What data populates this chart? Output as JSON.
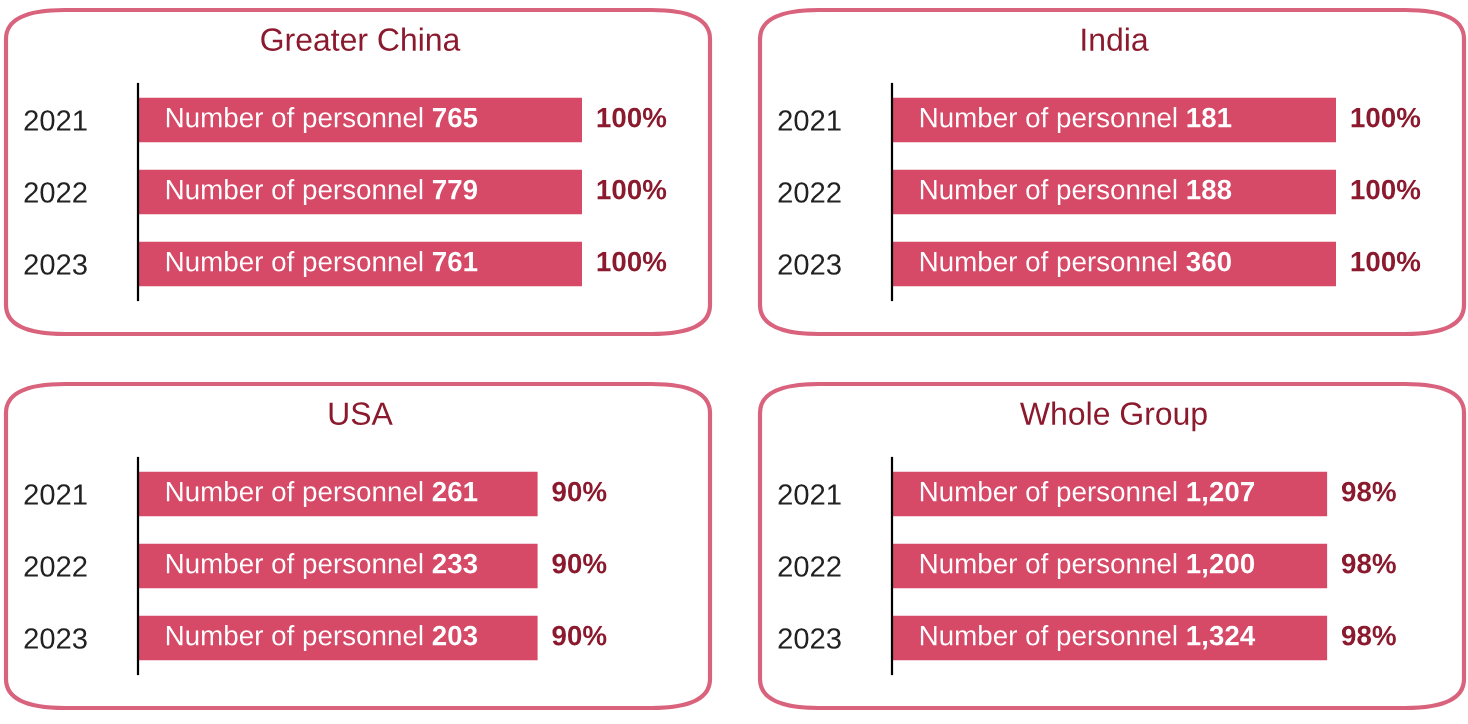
{
  "chart_data": [
    {
      "type": "bar",
      "orientation": "horizontal",
      "title": "Greater China",
      "categories": [
        "2021",
        "2022",
        "2023"
      ],
      "values": [
        100,
        100,
        100
      ],
      "value_labels": [
        "100%",
        "100%",
        "100%"
      ],
      "tick_labels": "y",
      "color": "#d64a68",
      "annotations": [
        "Number of personnel 765",
        "Number of personnel 779",
        "Number of personnel 761"
      ]
    },
    {
      "type": "bar",
      "orientation": "horizontal",
      "title": "India",
      "categories": [
        "2021",
        "2022",
        "2023"
      ],
      "values": [
        100,
        100,
        100
      ],
      "value_labels": [
        "100%",
        "100%",
        "100%"
      ],
      "tick_labels": "y",
      "color": "#d64a68",
      "annotations": [
        "Number of personnel 181",
        "Number of personnel 188",
        "Number of personnel 360"
      ]
    },
    {
      "type": "bar",
      "orientation": "horizontal",
      "title": "USA",
      "categories": [
        "2021",
        "2022",
        "2023"
      ],
      "values": [
        90,
        90,
        90
      ],
      "value_labels": [
        "90%",
        "90%",
        "90%"
      ],
      "tick_labels": "y",
      "color": "#d64a68",
      "annotations": [
        "Number of personnel 261",
        "Number of personnel 233",
        "Number of personnel 203"
      ]
    },
    {
      "type": "bar",
      "orientation": "horizontal",
      "title": "Whole Group",
      "categories": [
        "2021",
        "2022",
        "2023"
      ],
      "values": [
        98,
        98,
        98
      ],
      "value_labels": [
        "98%",
        "98%",
        "98%"
      ],
      "tick_labels": "y",
      "color": "#d64a68",
      "annotations": [
        "Number of personnel 1,207",
        "Number of personnel 1,200",
        "Number of personnel 1,324"
      ]
    }
  ]
}
